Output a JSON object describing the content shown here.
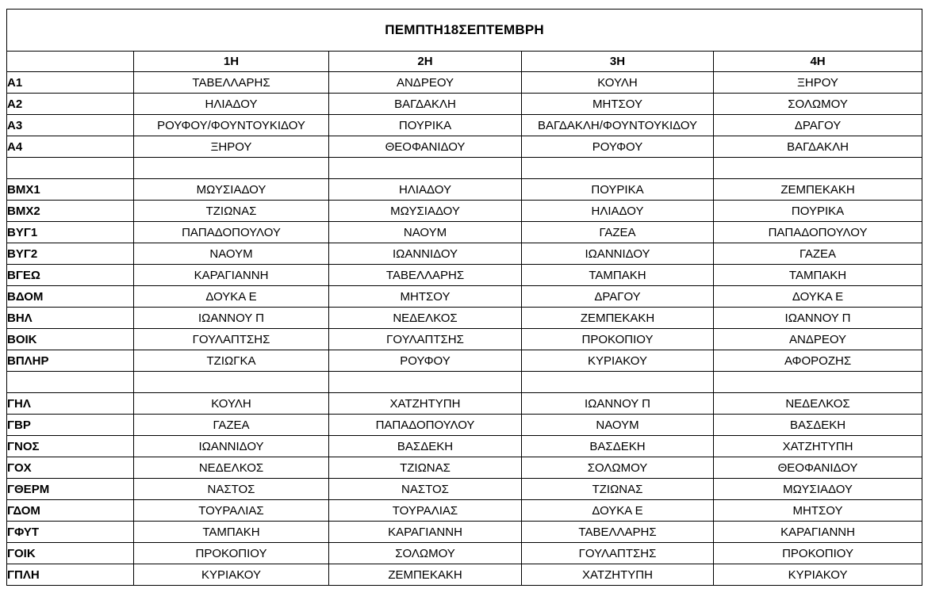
{
  "title": "ΠΕΜΠΤΗ18ΣΕΠΤΕΜΒΡΗ",
  "columns": [
    "",
    "1Η",
    "2Η",
    "3Η",
    "4Η"
  ],
  "rows": [
    {
      "label": "Α1",
      "cells": [
        "ΤΑΒΕΛΛΑΡΗΣ",
        "ΑΝΔΡΕΟΥ",
        "ΚΟΥΛΗ",
        "ΞΗΡΟΥ"
      ]
    },
    {
      "label": "Α2",
      "cells": [
        "ΗΛΙΑΔΟΥ",
        "ΒΑΓΔΑΚΛΗ",
        "ΜΗΤΣΟΥ",
        "ΣΟΛΩΜΟΥ"
      ]
    },
    {
      "label": "Α3",
      "cells": [
        "ΡΟΥΦΟΥ/ΦΟΥΝΤΟΥΚΙΔΟΥ",
        "ΠΟΥΡΙΚΑ",
        "ΒΑΓΔΑΚΛΗ/ΦΟΥΝΤΟΥΚΙΔΟΥ",
        "ΔΡΑΓΟΥ"
      ]
    },
    {
      "label": "Α4",
      "cells": [
        "ΞΗΡΟΥ",
        "ΘΕΟΦΑΝΙΔΟΥ",
        "ΡΟΥΦΟΥ",
        "ΒΑΓΔΑΚΛΗ"
      ]
    },
    {
      "label": "",
      "cells": [
        "",
        "",
        "",
        ""
      ],
      "spacer": true
    },
    {
      "label": "ΒΜΧ1",
      "cells": [
        "ΜΩΥΣΙΑΔΟΥ",
        "ΗΛΙΑΔΟΥ",
        "ΠΟΥΡΙΚΑ",
        "ΖΕΜΠΕΚΑΚΗ"
      ]
    },
    {
      "label": "ΒΜΧ2",
      "cells": [
        "ΤΖΙΩΝΑΣ",
        "ΜΩΥΣΙΑΔΟΥ",
        "ΗΛΙΑΔΟΥ",
        "ΠΟΥΡΙΚΑ"
      ]
    },
    {
      "label": "ΒΥΓ1",
      "cells": [
        "ΠΑΠΑΔΟΠΟΥΛΟΥ",
        "ΝΑΟΥΜ",
        "ΓΑΖΕΑ",
        "ΠΑΠΑΔΟΠΟΥΛΟΥ"
      ]
    },
    {
      "label": "ΒΥΓ2",
      "cells": [
        "ΝΑΟΥΜ",
        "ΙΩΑΝΝΙΔΟΥ",
        "ΙΩΑΝΝΙΔΟΥ",
        "ΓΑΖΕΑ"
      ]
    },
    {
      "label": "ΒΓΕΩ",
      "cells": [
        "ΚΑΡΑΓΙΑΝΝΗ",
        "ΤΑΒΕΛΛΑΡΗΣ",
        "ΤΑΜΠΑΚΗ",
        "ΤΑΜΠΑΚΗ"
      ]
    },
    {
      "label": "ΒΔΟΜ",
      "cells": [
        "ΔΟΥΚΑ Ε",
        "ΜΗΤΣΟΥ",
        "ΔΡΑΓΟΥ",
        "ΔΟΥΚΑ Ε"
      ]
    },
    {
      "label": "ΒΗΛ",
      "cells": [
        "ΙΩΑΝΝΟΥ Π",
        "ΝΕΔΕΛΚΟΣ",
        "ΖΕΜΠΕΚΑΚΗ",
        "ΙΩΑΝΝΟΥ Π"
      ]
    },
    {
      "label": "ΒΟΙΚ",
      "cells": [
        "ΓΟΥΛΑΠΤΣΗΣ",
        "ΓΟΥΛΑΠΤΣΗΣ",
        "ΠΡΟΚΟΠΙΟΥ",
        "ΑΝΔΡΕΟΥ"
      ]
    },
    {
      "label": "ΒΠΛΗΡ",
      "cells": [
        "ΤΖΙΩΓΚΑ",
        "ΡΟΥΦΟΥ",
        "ΚΥΡΙΑΚΟΥ",
        "ΑΦΟΡΟΖΗΣ"
      ]
    },
    {
      "label": "",
      "cells": [
        "",
        "",
        "",
        ""
      ],
      "spacer": true
    },
    {
      "label": "ΓΗΛ",
      "cells": [
        "ΚΟΥΛΗ",
        "ΧΑΤΖΗΤΥΠΗ",
        "ΙΩΑΝΝΟΥ Π",
        "ΝΕΔΕΛΚΟΣ"
      ]
    },
    {
      "label": "ΓΒΡ",
      "cells": [
        "ΓΑΖΕΑ",
        "ΠΑΠΑΔΟΠΟΥΛΟΥ",
        "ΝΑΟΥΜ",
        "ΒΑΣΔΕΚΗ"
      ]
    },
    {
      "label": "ΓΝΟΣ",
      "cells": [
        "ΙΩΑΝΝΙΔΟΥ",
        "ΒΑΣΔΕΚΗ",
        "ΒΑΣΔΕΚΗ",
        "ΧΑΤΖΗΤΥΠΗ"
      ]
    },
    {
      "label": "ΓΟΧ",
      "cells": [
        "ΝΕΔΕΛΚΟΣ",
        "ΤΖΙΩΝΑΣ",
        "ΣΟΛΩΜΟΥ",
        "ΘΕΟΦΑΝΙΔΟΥ"
      ]
    },
    {
      "label": "ΓΘΕΡΜ",
      "cells": [
        "ΝΑΣΤΟΣ",
        "ΝΑΣΤΟΣ",
        "ΤΖΙΩΝΑΣ",
        "ΜΩΥΣΙΑΔΟΥ"
      ]
    },
    {
      "label": "ΓΔΟΜ",
      "cells": [
        "ΤΟΥΡΑΛΙΑΣ",
        "ΤΟΥΡΑΛΙΑΣ",
        "ΔΟΥΚΑ Ε",
        "ΜΗΤΣΟΥ"
      ]
    },
    {
      "label": "ΓΦΥΤ",
      "cells": [
        "ΤΑΜΠΑΚΗ",
        "ΚΑΡΑΓΙΑΝΝΗ",
        "ΤΑΒΕΛΛΑΡΗΣ",
        "ΚΑΡΑΓΙΑΝΝΗ"
      ]
    },
    {
      "label": "ΓΟΙΚ",
      "cells": [
        "ΠΡΟΚΟΠΙΟΥ",
        "ΣΟΛΩΜΟΥ",
        "ΓΟΥΛΑΠΤΣΗΣ",
        "ΠΡΟΚΟΠΙΟΥ"
      ]
    },
    {
      "label": "ΓΠΛΗ",
      "cells": [
        "ΚΥΡΙΑΚΟΥ",
        "ΖΕΜΠΕΚΑΚΗ",
        "ΧΑΤΖΗΤΥΠΗ",
        "ΚΥΡΙΑΚΟΥ"
      ]
    }
  ],
  "colors": {
    "border": "#000000",
    "text": "#000000",
    "background": "#ffffff"
  }
}
